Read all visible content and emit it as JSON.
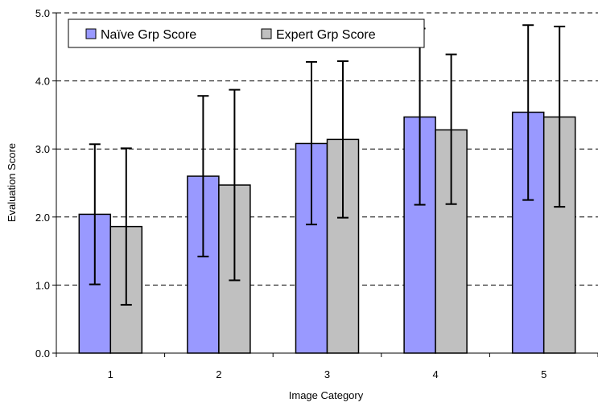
{
  "chart_data": {
    "type": "bar",
    "title": "",
    "xlabel": "Image Category",
    "ylabel": "Evaluation Score",
    "categories": [
      "1",
      "2",
      "3",
      "4",
      "5"
    ],
    "ylim": [
      0,
      5
    ],
    "yticks": [
      "0.0",
      "1.0",
      "2.0",
      "3.0",
      "4.0",
      "5.0"
    ],
    "grid": "horizontal dashed",
    "legend_position": "top-left",
    "series": [
      {
        "name": "Naïve Grp Score",
        "color": "#9999ff",
        "values": [
          2.04,
          2.6,
          3.08,
          3.47,
          3.54
        ],
        "error_low": [
          1.01,
          1.42,
          1.89,
          2.18,
          2.25
        ],
        "error_high": [
          3.07,
          3.78,
          4.28,
          4.77,
          4.82
        ]
      },
      {
        "name": "Expert Grp Score",
        "color": "#c0c0c0",
        "values": [
          1.86,
          2.47,
          3.14,
          3.28,
          3.47
        ],
        "error_low": [
          0.71,
          1.07,
          1.99,
          2.19,
          2.15
        ],
        "error_high": [
          3.01,
          3.87,
          4.29,
          4.39,
          4.8
        ]
      }
    ]
  }
}
